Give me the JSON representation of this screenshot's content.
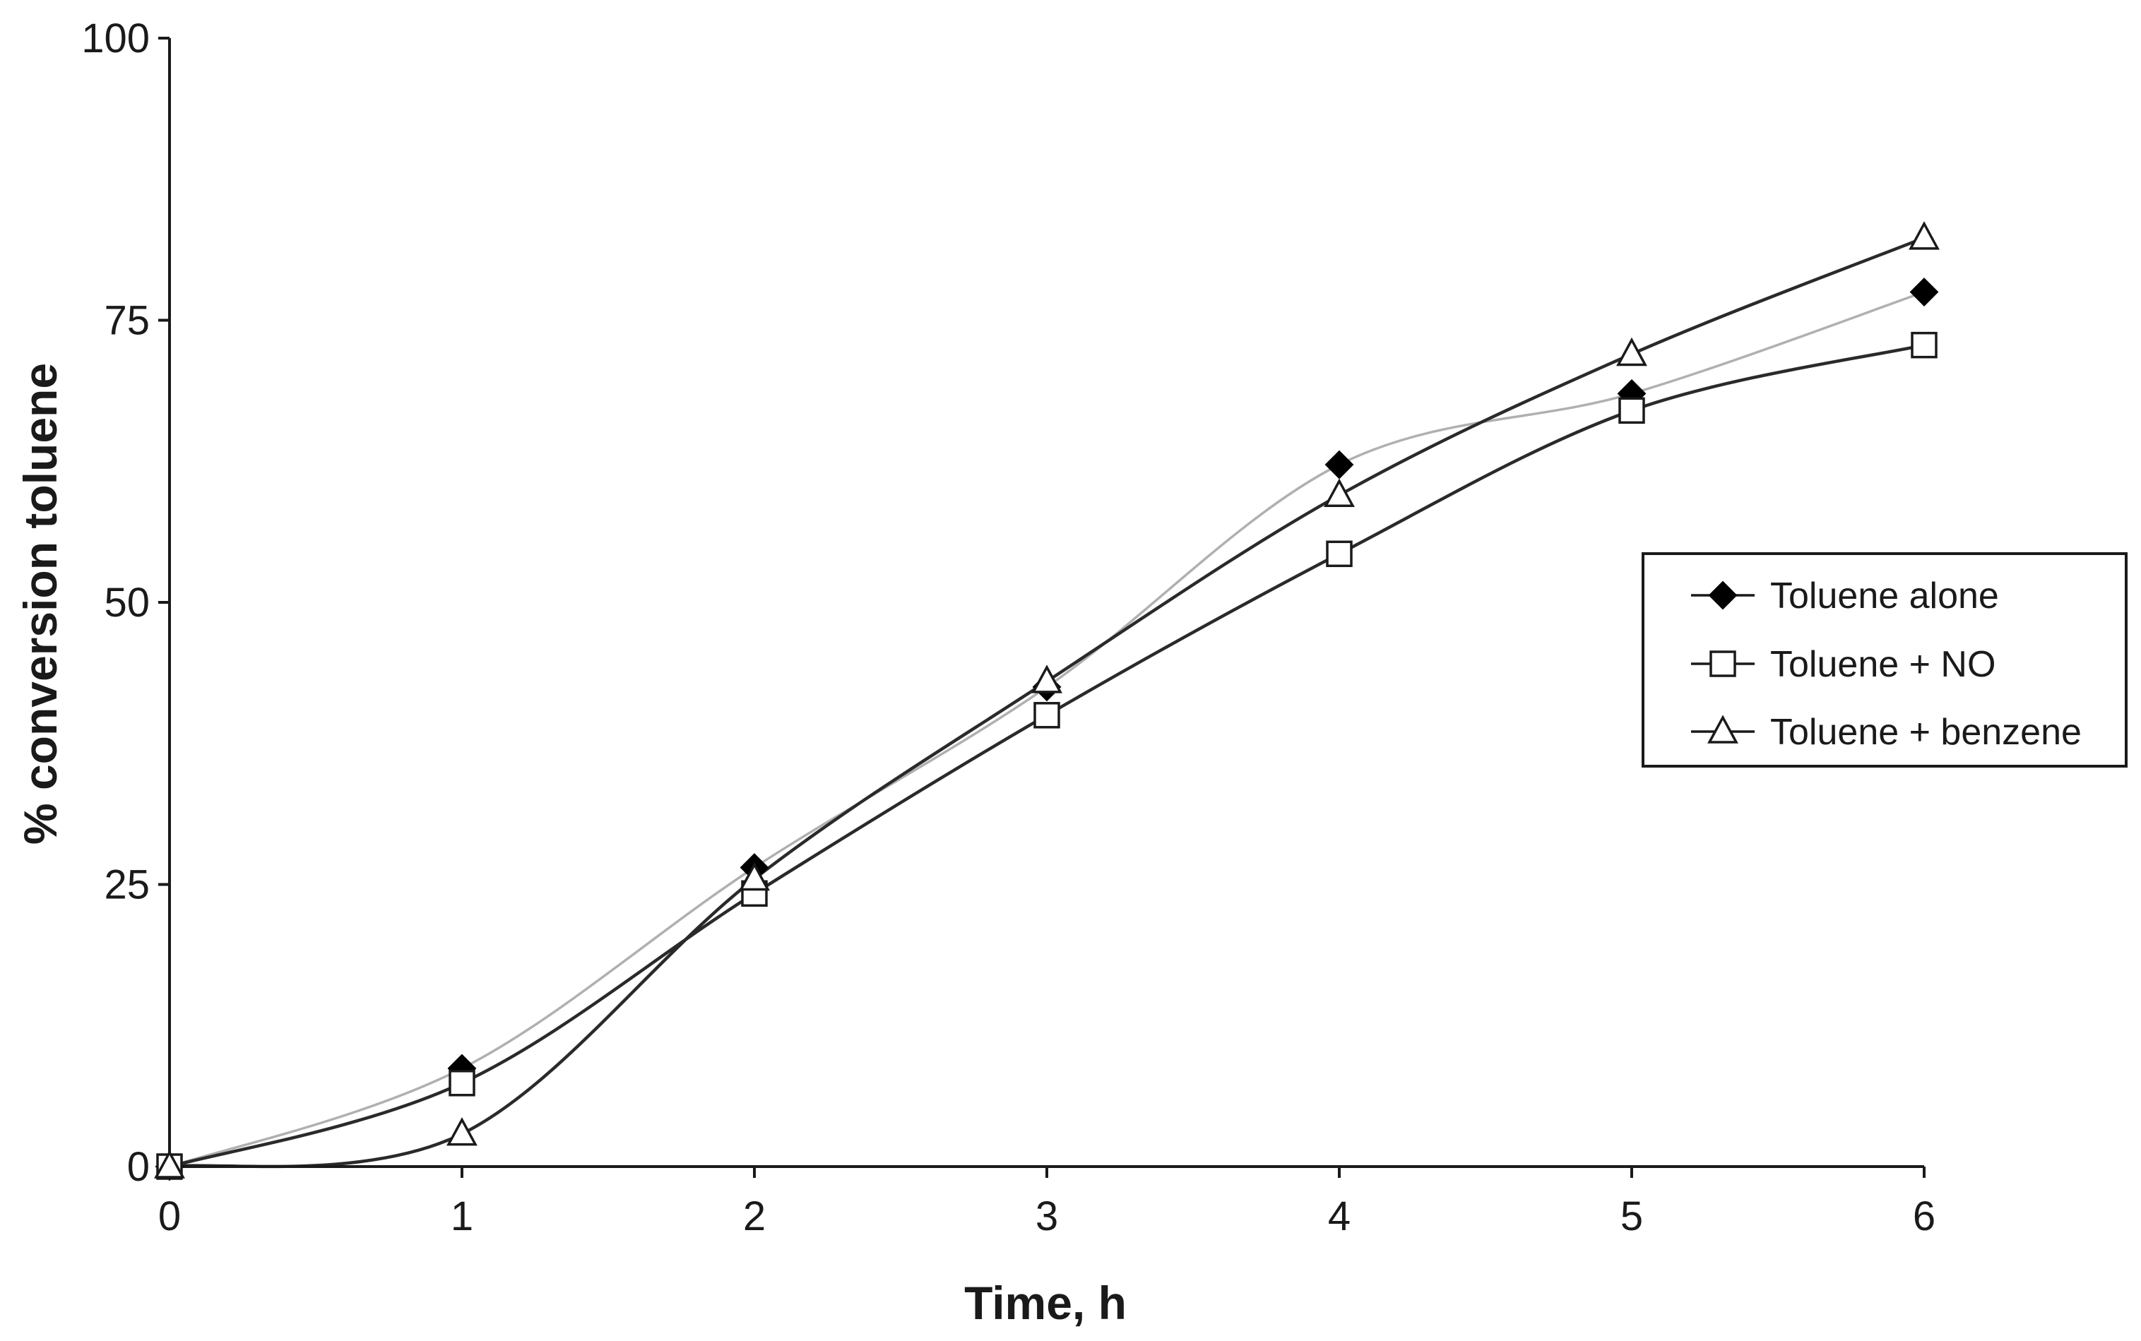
{
  "chart_data": {
    "type": "line",
    "title": "",
    "xlabel": "Time, h",
    "ylabel": "% conversion toluene",
    "xlim": [
      0,
      6
    ],
    "ylim": [
      0,
      100
    ],
    "x_ticks": [
      "0",
      "1",
      "2",
      "3",
      "4",
      "5",
      "6"
    ],
    "y_ticks": [
      "0",
      "25",
      "50",
      "75",
      "100"
    ],
    "grid": false,
    "legend_position": "right",
    "x": [
      0,
      1,
      2,
      3,
      4,
      5,
      6
    ],
    "series": [
      {
        "name": "Toluene alone",
        "marker": "filled-diamond",
        "line_color": "#b0b0b0",
        "values": [
          0,
          8.7,
          26.5,
          42.5,
          62.2,
          68.5,
          77.5
        ]
      },
      {
        "name": "Toluene + NO",
        "marker": "open-square",
        "line_color": "#2a2a2a",
        "values": [
          0,
          7.4,
          24.2,
          40.0,
          54.3,
          67.0,
          72.8
        ]
      },
      {
        "name": "Toluene + benzene",
        "marker": "open-triangle",
        "line_color": "#2a2a2a",
        "values": [
          0,
          2.9,
          25.5,
          43.0,
          59.5,
          72.0,
          82.3
        ]
      }
    ]
  }
}
